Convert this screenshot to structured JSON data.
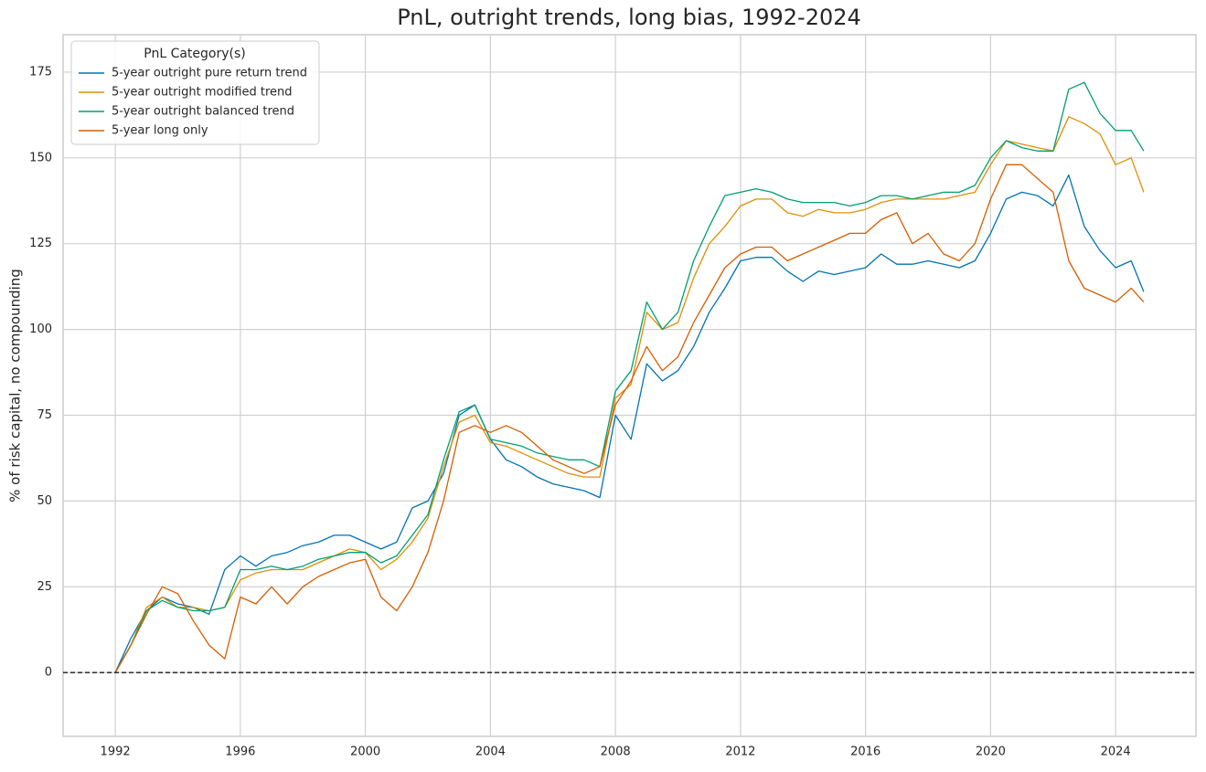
{
  "chart_data": {
    "type": "line",
    "title": "PnL, outright trends, long bias, 1992-2024",
    "y_label": "% of risk capital, no compounding",
    "legend_title": "PnL Category(s)",
    "legend_position": "upper-left",
    "grid": true,
    "hline": 0,
    "xlim": [
      1990.33,
      2026.57
    ],
    "xticks": [
      1992,
      1996,
      2000,
      2004,
      2008,
      2012,
      2016,
      2020,
      2024
    ],
    "ylim": [
      -18.6,
      185.9
    ],
    "yticks": [
      0,
      25,
      50,
      75,
      100,
      125,
      150,
      175
    ],
    "x": [
      1992,
      1992.5,
      1993,
      1993.5,
      1994,
      1994.5,
      1995,
      1995.5,
      1996,
      1996.5,
      1997,
      1997.5,
      1998,
      1998.5,
      1999,
      1999.5,
      2000,
      2000.5,
      2001,
      2001.5,
      2002,
      2002.5,
      2003,
      2003.5,
      2004,
      2004.5,
      2005,
      2005.5,
      2006,
      2006.5,
      2007,
      2007.5,
      2008,
      2008.5,
      2009,
      2009.5,
      2010,
      2010.5,
      2011,
      2011.5,
      2012,
      2012.5,
      2013,
      2013.5,
      2014,
      2014.5,
      2015,
      2015.5,
      2016,
      2016.5,
      2017,
      2017.5,
      2018,
      2018.5,
      2019,
      2019.5,
      2020,
      2020.5,
      2021,
      2021.5,
      2022,
      2022.5,
      2023,
      2023.5,
      2024,
      2024.5,
      2024.9
    ],
    "series": [
      {
        "name": "5-year outright pure return trend",
        "color": "#0173b2",
        "values": [
          0,
          10,
          18,
          22,
          20,
          19,
          17,
          30,
          34,
          31,
          34,
          35,
          37,
          38,
          40,
          40,
          38,
          36,
          38,
          48,
          50,
          58,
          75,
          78,
          68,
          62,
          60,
          57,
          55,
          54,
          53,
          51,
          75,
          68,
          90,
          85,
          88,
          95,
          105,
          112,
          120,
          121,
          121,
          117,
          114,
          117,
          116,
          117,
          118,
          122,
          119,
          119,
          120,
          119,
          118,
          120,
          128,
          138,
          140,
          139,
          136,
          145,
          130,
          123,
          118,
          120,
          111
        ]
      },
      {
        "name": "5-year outright modified trend",
        "color": "#de8f05",
        "values": [
          0,
          8,
          19,
          22,
          19,
          19,
          18,
          19,
          27,
          29,
          30,
          30,
          30,
          32,
          34,
          36,
          35,
          30,
          33,
          38,
          45,
          60,
          73,
          75,
          67,
          66,
          64,
          62,
          60,
          58,
          57,
          57,
          80,
          84,
          105,
          100,
          102,
          115,
          125,
          130,
          136,
          138,
          138,
          134,
          133,
          135,
          134,
          134,
          135,
          137,
          138,
          138,
          138,
          138,
          139,
          140,
          148,
          155,
          154,
          153,
          152,
          162,
          160,
          157,
          148,
          150,
          140
        ]
      },
      {
        "name": "5-year outright balanced trend",
        "color": "#029e73",
        "values": [
          0,
          8,
          18,
          21,
          19,
          18,
          18,
          19,
          30,
          30,
          31,
          30,
          31,
          33,
          34,
          35,
          35,
          32,
          34,
          40,
          46,
          62,
          76,
          78,
          68,
          67,
          66,
          64,
          63,
          62,
          62,
          60,
          82,
          88,
          108,
          100,
          105,
          120,
          130,
          139,
          140,
          141,
          140,
          138,
          137,
          137,
          137,
          136,
          137,
          139,
          139,
          138,
          139,
          140,
          140,
          142,
          150,
          155,
          153,
          152,
          152,
          170,
          172,
          163,
          158,
          158,
          152
        ]
      },
      {
        "name": "5-year long only",
        "color": "#d55e00",
        "values": [
          0,
          8,
          17,
          25,
          23,
          15,
          8,
          4,
          22,
          20,
          25,
          20,
          25,
          28,
          30,
          32,
          33,
          22,
          18,
          25,
          35,
          50,
          70,
          72,
          70,
          72,
          70,
          66,
          62,
          60,
          58,
          60,
          78,
          85,
          95,
          88,
          92,
          102,
          110,
          118,
          122,
          124,
          124,
          120,
          122,
          124,
          126,
          128,
          128,
          132,
          134,
          125,
          128,
          122,
          120,
          125,
          138,
          148,
          148,
          144,
          140,
          120,
          112,
          110,
          108,
          112,
          108
        ]
      }
    ]
  }
}
